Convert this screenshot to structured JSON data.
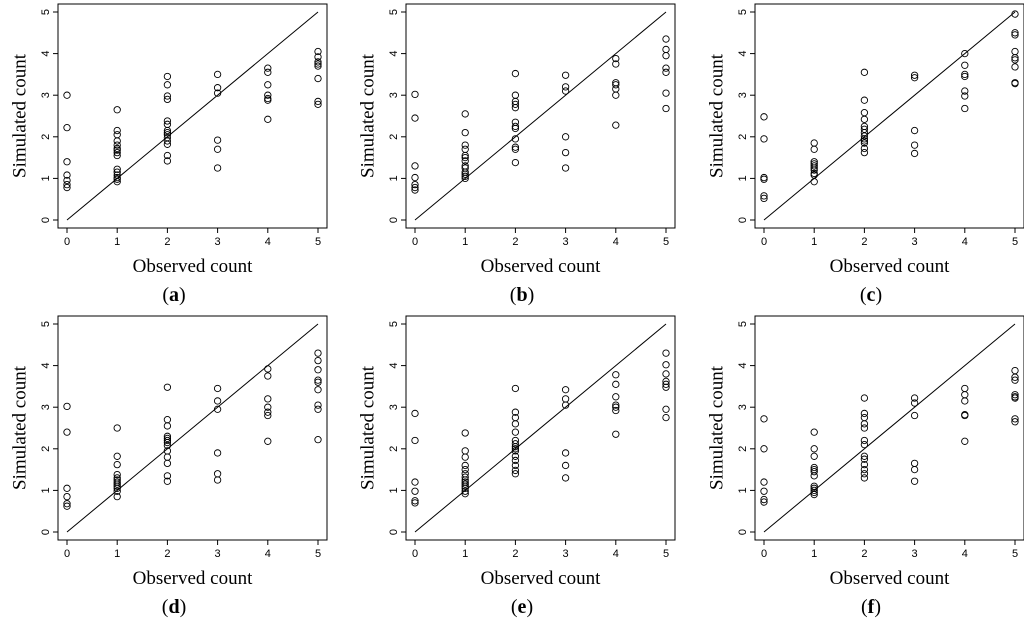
{
  "chart_data": [
    {
      "type": "scatter",
      "panel_label": "a",
      "xlabel": "Observed count",
      "ylabel": "Simulated count",
      "xlim": [
        0,
        5
      ],
      "ylim": [
        0,
        5
      ],
      "xticks": [
        "0",
        "1",
        "2",
        "3",
        "4",
        "5"
      ],
      "yticks": [
        "0",
        "1",
        "2",
        "3",
        "4",
        "5"
      ],
      "reference_line": "y = x",
      "points": [
        [
          0,
          3.0
        ],
        [
          0,
          2.22
        ],
        [
          0,
          1.4
        ],
        [
          0,
          1.08
        ],
        [
          0,
          0.95
        ],
        [
          0,
          0.85
        ],
        [
          0,
          0.78
        ],
        [
          1,
          2.65
        ],
        [
          1,
          2.15
        ],
        [
          1,
          2.05
        ],
        [
          1,
          1.9
        ],
        [
          1,
          1.8
        ],
        [
          1,
          1.72
        ],
        [
          1,
          1.68
        ],
        [
          1,
          1.62
        ],
        [
          1,
          1.55
        ],
        [
          1,
          1.22
        ],
        [
          1,
          1.15
        ],
        [
          1,
          1.08
        ],
        [
          1,
          1.02
        ],
        [
          1,
          0.98
        ],
        [
          1,
          0.92
        ],
        [
          2,
          3.45
        ],
        [
          2,
          3.25
        ],
        [
          2,
          2.98
        ],
        [
          2,
          2.9
        ],
        [
          2,
          2.38
        ],
        [
          2,
          2.3
        ],
        [
          2,
          2.15
        ],
        [
          2,
          2.1
        ],
        [
          2,
          2.05
        ],
        [
          2,
          1.98
        ],
        [
          2,
          1.9
        ],
        [
          2,
          1.82
        ],
        [
          2,
          1.55
        ],
        [
          2,
          1.42
        ],
        [
          3,
          3.5
        ],
        [
          3,
          3.18
        ],
        [
          3,
          3.05
        ],
        [
          3,
          1.92
        ],
        [
          3,
          1.7
        ],
        [
          3,
          1.25
        ],
        [
          4,
          3.65
        ],
        [
          4,
          3.55
        ],
        [
          4,
          3.25
        ],
        [
          4,
          3.0
        ],
        [
          4,
          2.92
        ],
        [
          4,
          2.88
        ],
        [
          4,
          2.42
        ],
        [
          5,
          4.05
        ],
        [
          5,
          3.92
        ],
        [
          5,
          3.8
        ],
        [
          5,
          3.75
        ],
        [
          5,
          3.7
        ],
        [
          5,
          3.4
        ],
        [
          5,
          2.85
        ],
        [
          5,
          2.78
        ]
      ]
    },
    {
      "type": "scatter",
      "panel_label": "b",
      "xlabel": "Observed count",
      "ylabel": "Simulated count",
      "xlim": [
        0,
        5
      ],
      "ylim": [
        0,
        5
      ],
      "xticks": [
        "0",
        "1",
        "2",
        "3",
        "4",
        "5"
      ],
      "yticks": [
        "0",
        "1",
        "2",
        "3",
        "4",
        "5"
      ],
      "reference_line": "y = x",
      "points": [
        [
          0,
          3.02
        ],
        [
          0,
          2.45
        ],
        [
          0,
          1.3
        ],
        [
          0,
          1.02
        ],
        [
          0,
          0.85
        ],
        [
          0,
          0.78
        ],
        [
          0,
          0.72
        ],
        [
          1,
          2.55
        ],
        [
          1,
          2.1
        ],
        [
          1,
          1.8
        ],
        [
          1,
          1.7
        ],
        [
          1,
          1.55
        ],
        [
          1,
          1.5
        ],
        [
          1,
          1.42
        ],
        [
          1,
          1.3
        ],
        [
          1,
          1.25
        ],
        [
          1,
          1.15
        ],
        [
          1,
          1.1
        ],
        [
          1,
          1.05
        ],
        [
          1,
          1.0
        ],
        [
          2,
          3.52
        ],
        [
          2,
          3.0
        ],
        [
          2,
          2.85
        ],
        [
          2,
          2.78
        ],
        [
          2,
          2.7
        ],
        [
          2,
          2.35
        ],
        [
          2,
          2.25
        ],
        [
          2,
          2.2
        ],
        [
          2,
          1.95
        ],
        [
          2,
          1.75
        ],
        [
          2,
          1.7
        ],
        [
          2,
          1.38
        ],
        [
          3,
          3.48
        ],
        [
          3,
          3.2
        ],
        [
          3,
          3.1
        ],
        [
          3,
          2.0
        ],
        [
          3,
          1.62
        ],
        [
          3,
          1.25
        ],
        [
          4,
          3.88
        ],
        [
          4,
          3.75
        ],
        [
          4,
          3.3
        ],
        [
          4,
          3.25
        ],
        [
          4,
          3.15
        ],
        [
          4,
          3.0
        ],
        [
          4,
          2.28
        ],
        [
          5,
          4.35
        ],
        [
          5,
          4.1
        ],
        [
          5,
          3.95
        ],
        [
          5,
          3.65
        ],
        [
          5,
          3.55
        ],
        [
          5,
          3.05
        ],
        [
          5,
          2.68
        ]
      ]
    },
    {
      "type": "scatter",
      "panel_label": "c",
      "xlabel": "Observed count",
      "ylabel": "Simulated count",
      "xlim": [
        0,
        5
      ],
      "ylim": [
        0,
        5
      ],
      "xticks": [
        "0",
        "1",
        "2",
        "3",
        "4",
        "5"
      ],
      "yticks": [
        "0",
        "1",
        "2",
        "3",
        "4",
        "5"
      ],
      "reference_line": "y = x",
      "points": [
        [
          0,
          2.48
        ],
        [
          0,
          1.95
        ],
        [
          0,
          1.02
        ],
        [
          0,
          0.98
        ],
        [
          0,
          0.58
        ],
        [
          0,
          0.52
        ],
        [
          1,
          1.85
        ],
        [
          1,
          1.7
        ],
        [
          1,
          1.4
        ],
        [
          1,
          1.35
        ],
        [
          1,
          1.3
        ],
        [
          1,
          1.25
        ],
        [
          1,
          1.2
        ],
        [
          1,
          1.12
        ],
        [
          1,
          1.08
        ],
        [
          1,
          0.92
        ],
        [
          2,
          3.55
        ],
        [
          2,
          2.88
        ],
        [
          2,
          2.58
        ],
        [
          2,
          2.42
        ],
        [
          2,
          2.25
        ],
        [
          2,
          2.18
        ],
        [
          2,
          2.1
        ],
        [
          2,
          2.02
        ],
        [
          2,
          1.95
        ],
        [
          2,
          1.9
        ],
        [
          2,
          1.85
        ],
        [
          2,
          1.72
        ],
        [
          2,
          1.62
        ],
        [
          3,
          3.48
        ],
        [
          3,
          3.42
        ],
        [
          3,
          2.15
        ],
        [
          3,
          1.8
        ],
        [
          3,
          1.6
        ],
        [
          4,
          4.0
        ],
        [
          4,
          3.72
        ],
        [
          4,
          3.5
        ],
        [
          4,
          3.45
        ],
        [
          4,
          3.1
        ],
        [
          4,
          2.98
        ],
        [
          4,
          2.68
        ],
        [
          5,
          4.95
        ],
        [
          5,
          4.5
        ],
        [
          5,
          4.45
        ],
        [
          5,
          4.05
        ],
        [
          5,
          3.9
        ],
        [
          5,
          3.85
        ],
        [
          5,
          3.68
        ],
        [
          5,
          3.3
        ],
        [
          5,
          3.28
        ]
      ]
    },
    {
      "type": "scatter",
      "panel_label": "d",
      "xlabel": "Observed count",
      "ylabel": "Simulated count",
      "xlim": [
        0,
        5
      ],
      "ylim": [
        0,
        5
      ],
      "xticks": [
        "0",
        "1",
        "2",
        "3",
        "4",
        "5"
      ],
      "yticks": [
        "0",
        "1",
        "2",
        "3",
        "4",
        "5"
      ],
      "reference_line": "y = x",
      "points": [
        [
          0,
          3.02
        ],
        [
          0,
          2.4
        ],
        [
          0,
          1.05
        ],
        [
          0,
          0.85
        ],
        [
          0,
          0.68
        ],
        [
          0,
          0.62
        ],
        [
          1,
          2.5
        ],
        [
          1,
          1.82
        ],
        [
          1,
          1.62
        ],
        [
          1,
          1.38
        ],
        [
          1,
          1.3
        ],
        [
          1,
          1.25
        ],
        [
          1,
          1.2
        ],
        [
          1,
          1.15
        ],
        [
          1,
          1.1
        ],
        [
          1,
          1.05
        ],
        [
          1,
          0.98
        ],
        [
          1,
          0.85
        ],
        [
          2,
          3.48
        ],
        [
          2,
          2.7
        ],
        [
          2,
          2.55
        ],
        [
          2,
          2.3
        ],
        [
          2,
          2.25
        ],
        [
          2,
          2.2
        ],
        [
          2,
          2.15
        ],
        [
          2,
          2.08
        ],
        [
          2,
          1.95
        ],
        [
          2,
          1.8
        ],
        [
          2,
          1.65
        ],
        [
          2,
          1.35
        ],
        [
          2,
          1.22
        ],
        [
          3,
          3.45
        ],
        [
          3,
          3.15
        ],
        [
          3,
          2.95
        ],
        [
          3,
          1.9
        ],
        [
          3,
          1.4
        ],
        [
          3,
          1.25
        ],
        [
          4,
          3.92
        ],
        [
          4,
          3.75
        ],
        [
          4,
          3.2
        ],
        [
          4,
          3.0
        ],
        [
          4,
          2.88
        ],
        [
          4,
          2.8
        ],
        [
          4,
          2.18
        ],
        [
          5,
          4.3
        ],
        [
          5,
          4.12
        ],
        [
          5,
          3.9
        ],
        [
          5,
          3.65
        ],
        [
          5,
          3.6
        ],
        [
          5,
          3.42
        ],
        [
          5,
          3.05
        ],
        [
          5,
          2.95
        ],
        [
          5,
          2.22
        ]
      ]
    },
    {
      "type": "scatter",
      "panel_label": "e",
      "xlabel": "Observed count",
      "ylabel": "Simulated count",
      "xlim": [
        0,
        5
      ],
      "ylim": [
        0,
        5
      ],
      "xticks": [
        "0",
        "1",
        "2",
        "3",
        "4",
        "5"
      ],
      "yticks": [
        "0",
        "1",
        "2",
        "3",
        "4",
        "5"
      ],
      "reference_line": "y = x",
      "points": [
        [
          0,
          2.85
        ],
        [
          0,
          2.2
        ],
        [
          0,
          1.2
        ],
        [
          0,
          0.98
        ],
        [
          0,
          0.75
        ],
        [
          0,
          0.7
        ],
        [
          1,
          2.38
        ],
        [
          1,
          1.95
        ],
        [
          1,
          1.8
        ],
        [
          1,
          1.6
        ],
        [
          1,
          1.5
        ],
        [
          1,
          1.4
        ],
        [
          1,
          1.32
        ],
        [
          1,
          1.25
        ],
        [
          1,
          1.2
        ],
        [
          1,
          1.15
        ],
        [
          1,
          1.1
        ],
        [
          1,
          1.05
        ],
        [
          1,
          0.98
        ],
        [
          1,
          0.92
        ],
        [
          2,
          3.45
        ],
        [
          2,
          2.88
        ],
        [
          2,
          2.75
        ],
        [
          2,
          2.6
        ],
        [
          2,
          2.4
        ],
        [
          2,
          2.2
        ],
        [
          2,
          2.12
        ],
        [
          2,
          2.05
        ],
        [
          2,
          2.0
        ],
        [
          2,
          1.95
        ],
        [
          2,
          1.82
        ],
        [
          2,
          1.72
        ],
        [
          2,
          1.6
        ],
        [
          2,
          1.48
        ],
        [
          2,
          1.4
        ],
        [
          3,
          3.42
        ],
        [
          3,
          3.2
        ],
        [
          3,
          3.05
        ],
        [
          3,
          1.9
        ],
        [
          3,
          1.6
        ],
        [
          3,
          1.3
        ],
        [
          4,
          3.78
        ],
        [
          4,
          3.55
        ],
        [
          4,
          3.25
        ],
        [
          4,
          3.05
        ],
        [
          4,
          3.0
        ],
        [
          4,
          2.92
        ],
        [
          4,
          2.35
        ],
        [
          5,
          4.3
        ],
        [
          5,
          4.02
        ],
        [
          5,
          3.8
        ],
        [
          5,
          3.62
        ],
        [
          5,
          3.55
        ],
        [
          5,
          3.48
        ],
        [
          5,
          2.95
        ],
        [
          5,
          2.75
        ]
      ]
    },
    {
      "type": "scatter",
      "panel_label": "f",
      "xlabel": "Observed count",
      "ylabel": "Simulated count",
      "xlim": [
        0,
        5
      ],
      "ylim": [
        0,
        5
      ],
      "xticks": [
        "0",
        "1",
        "2",
        "3",
        "4",
        "5"
      ],
      "yticks": [
        "0",
        "1",
        "2",
        "3",
        "4",
        "5"
      ],
      "reference_line": "y = x",
      "points": [
        [
          0,
          2.72
        ],
        [
          0,
          2.0
        ],
        [
          0,
          1.2
        ],
        [
          0,
          0.98
        ],
        [
          0,
          0.78
        ],
        [
          0,
          0.72
        ],
        [
          1,
          2.4
        ],
        [
          1,
          2.0
        ],
        [
          1,
          1.82
        ],
        [
          1,
          1.55
        ],
        [
          1,
          1.5
        ],
        [
          1,
          1.45
        ],
        [
          1,
          1.35
        ],
        [
          1,
          1.1
        ],
        [
          1,
          1.05
        ],
        [
          1,
          1.0
        ],
        [
          1,
          0.95
        ],
        [
          1,
          0.9
        ],
        [
          2,
          3.22
        ],
        [
          2,
          2.85
        ],
        [
          2,
          2.75
        ],
        [
          2,
          2.6
        ],
        [
          2,
          2.5
        ],
        [
          2,
          2.2
        ],
        [
          2,
          2.1
        ],
        [
          2,
          1.82
        ],
        [
          2,
          1.75
        ],
        [
          2,
          1.62
        ],
        [
          2,
          1.5
        ],
        [
          2,
          1.4
        ],
        [
          2,
          1.3
        ],
        [
          3,
          3.22
        ],
        [
          3,
          3.1
        ],
        [
          3,
          2.8
        ],
        [
          3,
          1.65
        ],
        [
          3,
          1.5
        ],
        [
          3,
          1.22
        ],
        [
          4,
          3.45
        ],
        [
          4,
          3.3
        ],
        [
          4,
          3.15
        ],
        [
          4,
          2.82
        ],
        [
          4,
          2.8
        ],
        [
          4,
          2.18
        ],
        [
          5,
          3.88
        ],
        [
          5,
          3.72
        ],
        [
          5,
          3.65
        ],
        [
          5,
          3.3
        ],
        [
          5,
          3.25
        ],
        [
          5,
          3.22
        ],
        [
          5,
          2.72
        ],
        [
          5,
          2.65
        ]
      ]
    }
  ]
}
